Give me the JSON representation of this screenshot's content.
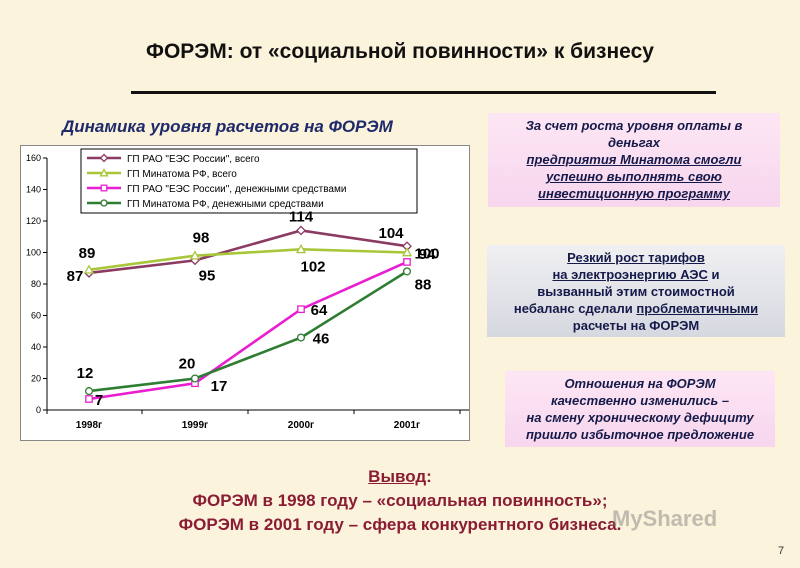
{
  "title": "ФОРЭМ: от «социальной повинности» к бизнесу",
  "chart_title": "Динамика уровня расчетов на ФОРЭМ",
  "notes": {
    "note1": {
      "line1": "За счет роста уровня оплаты в",
      "line2": "деньгах",
      "line3": "предприятия Минатома смогли",
      "line4": "успешно выполнять свою",
      "line5": "инвестиционную программу"
    },
    "note2": {
      "line1": "Резкий рост тарифов",
      "line2a": "на электроэнергию АЭС",
      "line2b": " и",
      "line3": "вызванный этим стоимостной",
      "line4a": "небаланс сделали ",
      "line4b": "проблематичными",
      "line5": "расчеты на ФОРЭМ"
    },
    "note3": {
      "line1": "Отношения на ФОРЭМ",
      "line2": "качественно изменились –",
      "line3": "на смену хроническому дефициту",
      "line4": "пришло избыточное предложение"
    }
  },
  "conclusion": {
    "head": "Вывод",
    "colon": ":",
    "line1": "ФОРЭМ  в 1998 году – «социальная повинность»;",
    "line2": "ФОРЭМ в 2001 году – сфера конкурентного бизнеса."
  },
  "watermark": "MyShared",
  "page_number": "7",
  "chart_data": {
    "type": "line",
    "categories": [
      "1998г",
      "1999г",
      "2000г",
      "2001г"
    ],
    "ylim": [
      0,
      160
    ],
    "yticks": [
      "0",
      "20",
      "40",
      "60",
      "80",
      "100",
      "120",
      "140",
      "160"
    ],
    "grid": false,
    "legend_position": "top",
    "series": [
      {
        "name": "ГП РАО \"ЕЭС России\", всего",
        "values": [
          87,
          95,
          114,
          104
        ],
        "color": "#8b3a62",
        "marker": "diamond",
        "labels": [
          "87",
          "95",
          "114",
          "104"
        ]
      },
      {
        "name": "ГП Минатома РФ, всего",
        "values": [
          89,
          98,
          102,
          100
        ],
        "color": "#a8c63a",
        "marker": "triangle",
        "labels": [
          "89",
          "98",
          "102",
          "100"
        ]
      },
      {
        "name": "ГП РАО \"ЕЭС России\", денежными средствами",
        "values": [
          7,
          17,
          64,
          94
        ],
        "color": "#e81ed0",
        "marker": "square",
        "labels": [
          "7",
          "17",
          "64",
          "94"
        ]
      },
      {
        "name": "ГП Минатома РФ, денежными средствами",
        "values": [
          12,
          20,
          46,
          88
        ],
        "color": "#2e7d32",
        "marker": "circle",
        "labels": [
          "12",
          "20",
          "46",
          "88"
        ]
      }
    ]
  }
}
